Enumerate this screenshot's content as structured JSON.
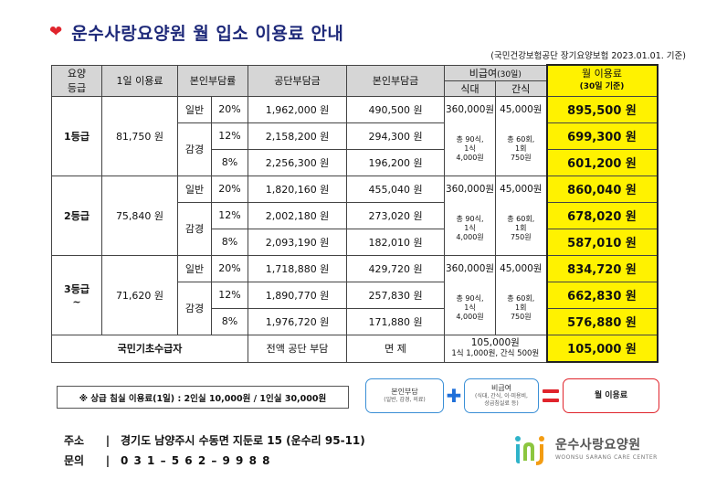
{
  "title": "운수사랑요양원 월 입소 이용료 안내",
  "basis": "(국민건강보험공단 장기요양보험 2023.01.01. 기준)",
  "headers": {
    "grade_line1": "요양",
    "grade_line2": "등급",
    "daily_fee": "1일 이용료",
    "copay_rate": "본인부담률",
    "public_burden": "공단부담금",
    "self_burden": "본인부담금",
    "nonpay": "비급여",
    "nonpay_days": "(30일)",
    "meal": "식대",
    "snack": "간식",
    "monthly": "월 이용료",
    "monthly_sub": "(30일 기준)"
  },
  "grades": [
    {
      "grade": "1등급",
      "grade_suffix": "",
      "daily_fee": "81,750 원",
      "rows": [
        {
          "type": "일반",
          "rate": "20%",
          "public": "1,962,000 원",
          "self": "490,500 원",
          "monthly": "895,500 원"
        },
        {
          "type": "감경",
          "rate": "12%",
          "public": "2,158,200 원",
          "self": "294,300 원",
          "monthly": "699,300 원"
        },
        {
          "type": "",
          "rate": "8%",
          "public": "2,256,300 원",
          "self": "196,200 원",
          "monthly": "601,200 원"
        }
      ],
      "meal_total": "360,000원",
      "meal_note": [
        "총 90식,",
        "1식",
        "4,000원"
      ],
      "snack_total": "45,000원",
      "snack_note": [
        "총 60회,",
        "1회",
        "750원"
      ]
    },
    {
      "grade": "2등급",
      "grade_suffix": "",
      "daily_fee": "75,840 원",
      "rows": [
        {
          "type": "일반",
          "rate": "20%",
          "public": "1,820,160 원",
          "self": "455,040 원",
          "monthly": "860,040 원"
        },
        {
          "type": "감경",
          "rate": "12%",
          "public": "2,002,180 원",
          "self": "273,020 원",
          "monthly": "678,020 원"
        },
        {
          "type": "",
          "rate": "8%",
          "public": "2,093,190 원",
          "self": "182,010 원",
          "monthly": "587,010 원"
        }
      ],
      "meal_total": "360,000원",
      "meal_note": [
        "총 90식,",
        "1식",
        "4,000원"
      ],
      "snack_total": "45,000원",
      "snack_note": [
        "총 60회,",
        "1회",
        "750원"
      ]
    },
    {
      "grade": "3등급",
      "grade_suffix": "~",
      "daily_fee": "71,620 원",
      "rows": [
        {
          "type": "일반",
          "rate": "20%",
          "public": "1,718,880 원",
          "self": "429,720 원",
          "monthly": "834,720 원"
        },
        {
          "type": "감경",
          "rate": "12%",
          "public": "1,890,770 원",
          "self": "257,830 원",
          "monthly": "662,830 원"
        },
        {
          "type": "",
          "rate": "8%",
          "public": "1,976,720 원",
          "self": "171,880 원",
          "monthly": "576,880 원"
        }
      ],
      "meal_total": "360,000원",
      "meal_note": [
        "총 90식,",
        "1식",
        "4,000원"
      ],
      "snack_total": "45,000원",
      "snack_note": [
        "총 60회,",
        "1회",
        "750원"
      ]
    }
  ],
  "basic": {
    "label": "국민기초수급자",
    "public": "전액 공단 부담",
    "self": "면 제",
    "nonpay_total": "105,000원",
    "nonpay_note": "1식 1,000원, 간식 500원",
    "monthly": "105,000 원"
  },
  "footnote": "※ 상급 침실 이용료(1일) : 2인실 10,000원   /  1인실 30,000원",
  "formula": {
    "box1": "본인부담",
    "box1_sub": "(일반, 감경, 의료)",
    "box2": "비급여",
    "box2_sub1": "(식대, 간식, 이·미용비,",
    "box2_sub2": "상급침실료 등)",
    "box3": "월 이용료"
  },
  "contact": {
    "address_label": "주소",
    "address": "경기도 남양주시 수동면 지둔로 15 (운수리 95-11)",
    "phone_label": "문의",
    "phone": "0 3 1 – 5 6 2 – 9 9 8 8",
    "sep": "|"
  },
  "logo": {
    "name": "운수사랑요양원",
    "eng": "WOONSU SARANG CARE CENTER"
  },
  "colors": {
    "highlight": "#fff200",
    "header": "#d6d6d6",
    "title": "#1f2a7a",
    "heart": "#e0242c",
    "accent_blue": "#3a8fd6"
  }
}
